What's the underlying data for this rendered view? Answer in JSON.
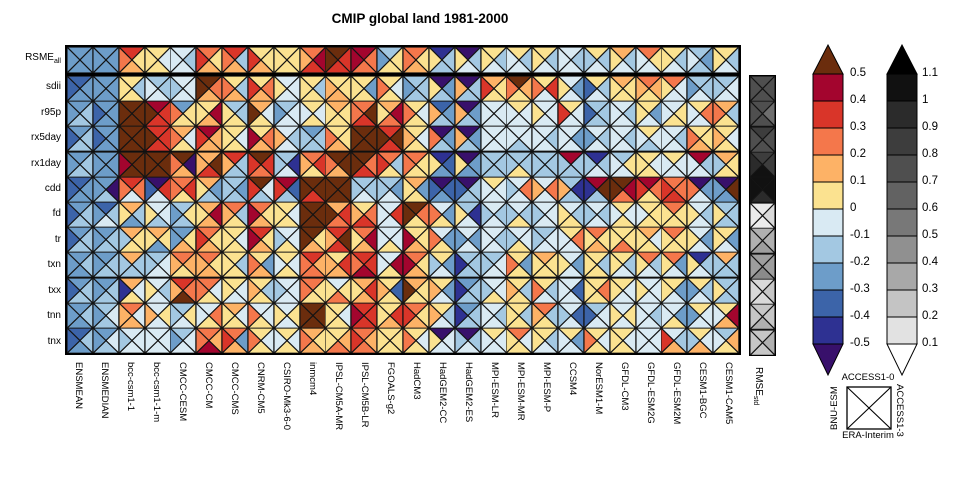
{
  "title": "CMIP global land 1981-2000",
  "chart_data": {
    "type": "heatmap",
    "title": "CMIP global land 1981-2000",
    "description": "Portrait diagram of RMSE differences; each cell split into 4 triangles, one per reference dataset",
    "rows": [
      "RSME|all",
      "sdii",
      "r95p",
      "rx5day",
      "rx1day",
      "cdd",
      "fd",
      "tr",
      "txn",
      "txx",
      "tnn",
      "tnx"
    ],
    "columns": [
      "ENSMEAN",
      "ENSMEDIAN",
      "bcc-csm1-1",
      "bcc-csm1-1-m",
      "CMCC-CESM",
      "CMCC-CM",
      "CMCC-CMS",
      "CNRM-CM5",
      "CSIRO-Mk3-6-0",
      "inmcm4",
      "IPSL-CM5A-MR",
      "IPSL-CM5B-LR",
      "FGOALS-g2",
      "HadCM3",
      "HadGEM2-CC",
      "HadGEM2-ES",
      "MPI-ESM-LR",
      "MPI-ESM-MR",
      "MPI-ESM-P",
      "CCSM4",
      "NorESM1-M",
      "GFDL-CM3",
      "GFDL-ESM2G",
      "GFDL-ESM2M",
      "CESM1-BGC",
      "CESM1-CAM5"
    ],
    "triangle_order": "top,right,bottom,left",
    "palette": {
      "p": "#38106b",
      "1": "#2e3192",
      "2": "#3c64a9",
      "3": "#6d9dc9",
      "4": "#a3c8e2",
      "5": "#d9eaf3",
      "6": "#fbe290",
      "7": "#fdb266",
      "8": "#f4774b",
      "9": "#d93529",
      "a": "#a3052e",
      "b": "#6b2d0d"
    },
    "bin_values": {
      "p": "< -0.5",
      "1": "-0.5 to -0.4",
      "2": "-0.4 to -0.3",
      "3": "-0.3 to -0.2",
      "4": "-0.2 to -0.1",
      "5": "-0.1 to 0",
      "6": "0 to 0.1",
      "7": "0.1 to 0.2",
      "8": "0.2 to 0.3",
      "9": "0.3 to 0.4",
      "a": "0.4 to 0.5",
      "b": "> 0.5"
    },
    "cells": [
      [
        "3333",
        "3333",
        "9678",
        "6566",
        "5455",
        "8679",
        "9478",
        "6679",
        "6666",
        "8a97",
        "b99b",
        "a88a",
        "4663",
        "8678",
        "1446",
        "p456",
        "6456",
        "6455",
        "6456",
        "5455",
        "6454",
        "7456",
        "8655",
        "6456",
        "4345",
        "6456"
      ],
      [
        "2332",
        "3333",
        "6466",
        "4455",
        "5554",
        "b87b",
        "6478",
        "6879",
        "5556",
        "6466",
        "6677",
        "6366",
        "6568",
        "4443",
        "p346",
        "p447",
        "7669",
        "b768",
        "6958",
        "5356",
        "6452",
        "7666",
        "8767",
        "8556",
        "4453",
        "4554"
      ],
      [
        "3443",
        "3332",
        "bbbb",
        "a99b",
        "3668",
        "6a76",
        "4466",
        "756b",
        "4553",
        "6565",
        "7666",
        "8b98",
        "7a86",
        "6568",
        "2347",
        "p347",
        "5555",
        "6555",
        "5556",
        "6559",
        "4442",
        "5455",
        "6356",
        "5665",
        "6855",
        "7468"
      ],
      [
        "3442",
        "3332",
        "bbbb",
        "999b",
        "7568",
        "a779",
        "6566",
        "687a",
        "5457",
        "3444",
        "6678",
        "bbbb",
        "9b9b",
        "6567",
        "p348",
        "p347",
        "5555",
        "5545",
        "5455",
        "5355",
        "5453",
        "5455",
        "6545",
        "5455",
        "6678",
        "6567"
      ],
      [
        "3443",
        "3333",
        "bbba",
        "bbbb",
        "bp78",
        "7b97",
        "9447",
        "b989",
        "4154",
        "8967",
        "bb78",
        "b89b",
        "8469",
        "8668",
        "1236",
        "p336",
        "4444",
        "4464",
        "4444",
        "a444",
        "1454",
        "4655",
        "6566",
        "6555",
        "a455",
        "7664"
      ],
      [
        "2332",
        "3p43",
        "9858",
        "p952",
        "8968",
        "7346",
        "4344",
        "b549",
        "a249",
        "bb9b",
        "bbbb",
        "4454",
        "4354",
        "7366",
        "p232",
        "p442",
        "6555",
        "5854",
        "5857",
        "4147",
        "ab41",
        "ba8b",
        "a869",
        "8899",
        "p358",
        "pb33"
      ],
      [
        "3442",
        "2453",
        "7436",
        "5546",
        "4643",
        "7a76",
        "8467",
        "867a",
        "6566",
        "bbbb",
        "798b",
        "6897",
        "5955",
        "b86b",
        "5368",
        "4156",
        "5454",
        "5464",
        "5554",
        "5466",
        "5454",
        "6565",
        "6665",
        "8666",
        "5456",
        "4446"
      ],
      [
        "3442",
        "3443",
        "7664",
        "7636",
        "3673",
        "8679",
        "6566",
        "967a",
        "5564",
        "b67b",
        "9b97",
        "8a76",
        "5565",
        "667a",
        "5368",
        "5353",
        "5455",
        "5564",
        "4554",
        "6855",
        "8676",
        "6686",
        "7566",
        "8666",
        "5356",
        "6356"
      ],
      [
        "3433",
        "3443",
        "7444",
        "4554",
        "8767",
        "8677",
        "6466",
        "6378",
        "6565",
        "9788",
        "6977",
        "99a8",
        "5a65",
        "867a",
        "6354",
        "4441",
        "4554",
        "6368",
        "7666",
        "5356",
        "6466",
        "6456",
        "8456",
        "8356",
        "1456",
        "7444"
      ],
      [
        "3442",
        "3443",
        "7561",
        "5456",
        "98b7",
        "8568",
        "6556",
        "6467",
        "5554",
        "8668",
        "5686",
        "7976",
        "6267",
        "766b",
        "6357",
        "3441",
        "5564",
        "6467",
        "6458",
        "5255",
        "6866",
        "6556",
        "5556",
        "6356",
        "6453",
        "4446"
      ],
      [
        "3433",
        "4543",
        "8577",
        "5657",
        "4654",
        "5865",
        "7566",
        "5568",
        "5656",
        "bbbb",
        "6566",
        "999a",
        "6976",
        "8679",
        "6457",
        "3441",
        "5455",
        "6466",
        "8467",
        "5254",
        "4552",
        "5656",
        "5455",
        "5365",
        "6553",
        "6a75"
      ],
      [
        "2432",
        "3543",
        "5554",
        "5555",
        "4553",
        "87a8",
        "8379",
        "6568",
        "6565",
        "7678",
        "6786",
        "8789",
        "6666",
        "6568",
        "p556",
        "p454",
        "6555",
        "8566",
        "6456",
        "6355",
        "6568",
        "6566",
        "5555",
        "5479",
        "6574",
        "4765"
      ]
    ],
    "std_column": {
      "label": "RMSE|std",
      "rows": [
        "sdii",
        "r95p",
        "rx5day",
        "rx1day",
        "cdd",
        "fd",
        "tr",
        "txn",
        "txx",
        "tnn",
        "tnx"
      ],
      "gray_palette": {
        "0": "#ffffff",
        "1": "#ebebeb",
        "2": "#d9d9d9",
        "3": "#c6c6c6",
        "4": "#b0b0b0",
        "5": "#9e9e9e",
        "6": "#8a8a8a",
        "7": "#6e6e6e",
        "8": "#4f4f4f",
        "9": "#3d3d3d",
        "A": "#2b2b2b",
        "B": "#111111"
      },
      "cells": [
        "8888",
        "8788",
        "9888",
        "99BA",
        "BBAB",
        "1211",
        "4454",
        "5565",
        "2322",
        "3343",
        "3433"
      ]
    },
    "colorbars": {
      "color": {
        "labels": [
          "0.5",
          "0.4",
          "0.3",
          "0.2",
          "0.1",
          "0",
          "-0.1",
          "-0.2",
          "-0.3",
          "-0.4",
          "-0.5"
        ],
        "bands": [
          "a",
          "9",
          "8",
          "7",
          "6",
          "5",
          "4",
          "3",
          "2",
          "1"
        ],
        "top_arrow": "b",
        "bottom_arrow": "p"
      },
      "gray": {
        "labels": [
          "1.1",
          "1",
          "0.9",
          "0.8",
          "0.7",
          "0.6",
          "0.5",
          "0.4",
          "0.3",
          "0.2",
          "0.1"
        ],
        "bands": [
          "#111111",
          "#2b2b2b",
          "#3d3d3d",
          "#4f4f4f",
          "#626262",
          "#787878",
          "#909090",
          "#a8a8a8",
          "#c4c4c4",
          "#e2e2e2"
        ],
        "top_arrow": "#000000",
        "bottom_arrow": "#ffffff"
      }
    },
    "legend": {
      "top": "ACCESS1-0",
      "right": "ACCESS1-3",
      "bottom": "ERA-Interim",
      "left": "BNU-ESM"
    }
  }
}
